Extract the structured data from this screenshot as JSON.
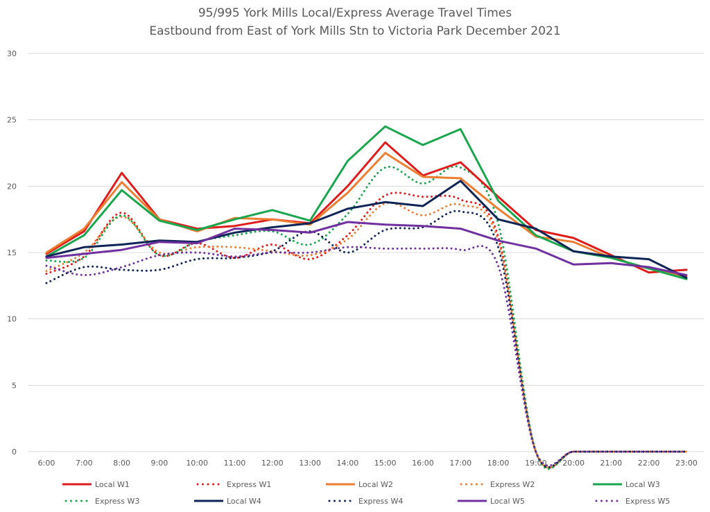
{
  "chart_data": {
    "type": "line",
    "title": [
      "95/995 York Mills Local/Express Average Travel Times",
      "Eastbound from East of York Mills Stn to Victoria Park December 2021"
    ],
    "xlabel": "",
    "ylabel": "",
    "ylim": [
      0,
      30
    ],
    "yticks": [
      0,
      5,
      10,
      15,
      20,
      25,
      30
    ],
    "grid": true,
    "legend_position": "bottom",
    "categories": [
      "6:00",
      "7:00",
      "8:00",
      "9:00",
      "10:00",
      "11:00",
      "12:00",
      "13:00",
      "14:00",
      "15:00",
      "16:00",
      "17:00",
      "18:00",
      "19:00",
      "20:00",
      "21:00",
      "22:00",
      "23:00"
    ],
    "series": [
      {
        "name": "Local W1",
        "color": "#e01b1b",
        "style": "solid",
        "values": [
          14.9,
          16.6,
          21.0,
          17.5,
          16.8,
          17.0,
          17.5,
          17.2,
          20.0,
          23.3,
          20.8,
          21.8,
          19.2,
          16.7,
          16.1,
          14.8,
          13.5,
          13.7
        ]
      },
      {
        "name": "Express W1",
        "color": "#e01b1b",
        "style": "dotted",
        "values": [
          13.4,
          14.7,
          18.0,
          14.8,
          15.7,
          14.6,
          15.6,
          14.5,
          16.3,
          19.3,
          19.2,
          19.0,
          16.2,
          0,
          0,
          0,
          0,
          0
        ]
      },
      {
        "name": "Local W2",
        "color": "#ed7d31",
        "style": "solid",
        "values": [
          15.0,
          16.8,
          20.3,
          17.5,
          16.6,
          17.6,
          17.5,
          17.1,
          19.5,
          22.5,
          20.7,
          20.6,
          18.3,
          16.2,
          15.8,
          14.6,
          13.8,
          13.2
        ]
      },
      {
        "name": "Express W2",
        "color": "#ed7d31",
        "style": "dotted",
        "values": [
          13.6,
          15.0,
          17.7,
          15.0,
          15.4,
          15.4,
          15.1,
          14.8,
          16.0,
          18.7,
          17.8,
          18.6,
          15.9,
          0,
          0,
          0,
          0,
          0
        ]
      },
      {
        "name": "Local W3",
        "color": "#1aa64c",
        "style": "solid",
        "values": [
          14.7,
          16.3,
          19.7,
          17.4,
          16.7,
          17.5,
          18.2,
          17.4,
          21.9,
          24.5,
          23.1,
          24.3,
          18.9,
          16.3,
          15.1,
          14.6,
          13.8,
          13.0
        ]
      },
      {
        "name": "Express W3",
        "color": "#1aa64c",
        "style": "dotted",
        "values": [
          14.4,
          14.6,
          17.8,
          14.8,
          15.8,
          16.3,
          16.6,
          15.6,
          17.9,
          21.4,
          20.2,
          21.4,
          17.2,
          0,
          0,
          0,
          0,
          0
        ]
      },
      {
        "name": "Local W4",
        "color": "#0e2356",
        "style": "solid",
        "values": [
          14.7,
          15.4,
          15.6,
          15.9,
          15.8,
          16.5,
          16.9,
          17.2,
          18.3,
          18.8,
          18.5,
          20.4,
          17.5,
          16.8,
          15.1,
          14.7,
          14.5,
          13.1
        ]
      },
      {
        "name": "Express W4",
        "color": "#0e2356",
        "style": "dotted",
        "values": [
          12.7,
          13.9,
          13.7,
          13.7,
          14.5,
          14.6,
          15.1,
          16.6,
          15.0,
          16.7,
          16.9,
          18.1,
          15.4,
          0,
          0,
          0,
          0,
          0
        ]
      },
      {
        "name": "Local W5",
        "color": "#7030a0",
        "style": "solid",
        "values": [
          14.6,
          14.9,
          15.2,
          15.8,
          15.7,
          16.8,
          16.7,
          16.5,
          17.3,
          17.1,
          17.0,
          16.8,
          15.9,
          15.3,
          14.1,
          14.2,
          13.9,
          13.3
        ]
      },
      {
        "name": "Express W5",
        "color": "#7030a0",
        "style": "dotted",
        "values": [
          14.0,
          13.3,
          13.9,
          14.8,
          15.0,
          14.7,
          15.0,
          15.0,
          15.4,
          15.3,
          15.3,
          15.2,
          14.0,
          0,
          0,
          0,
          0,
          0
        ]
      }
    ]
  }
}
